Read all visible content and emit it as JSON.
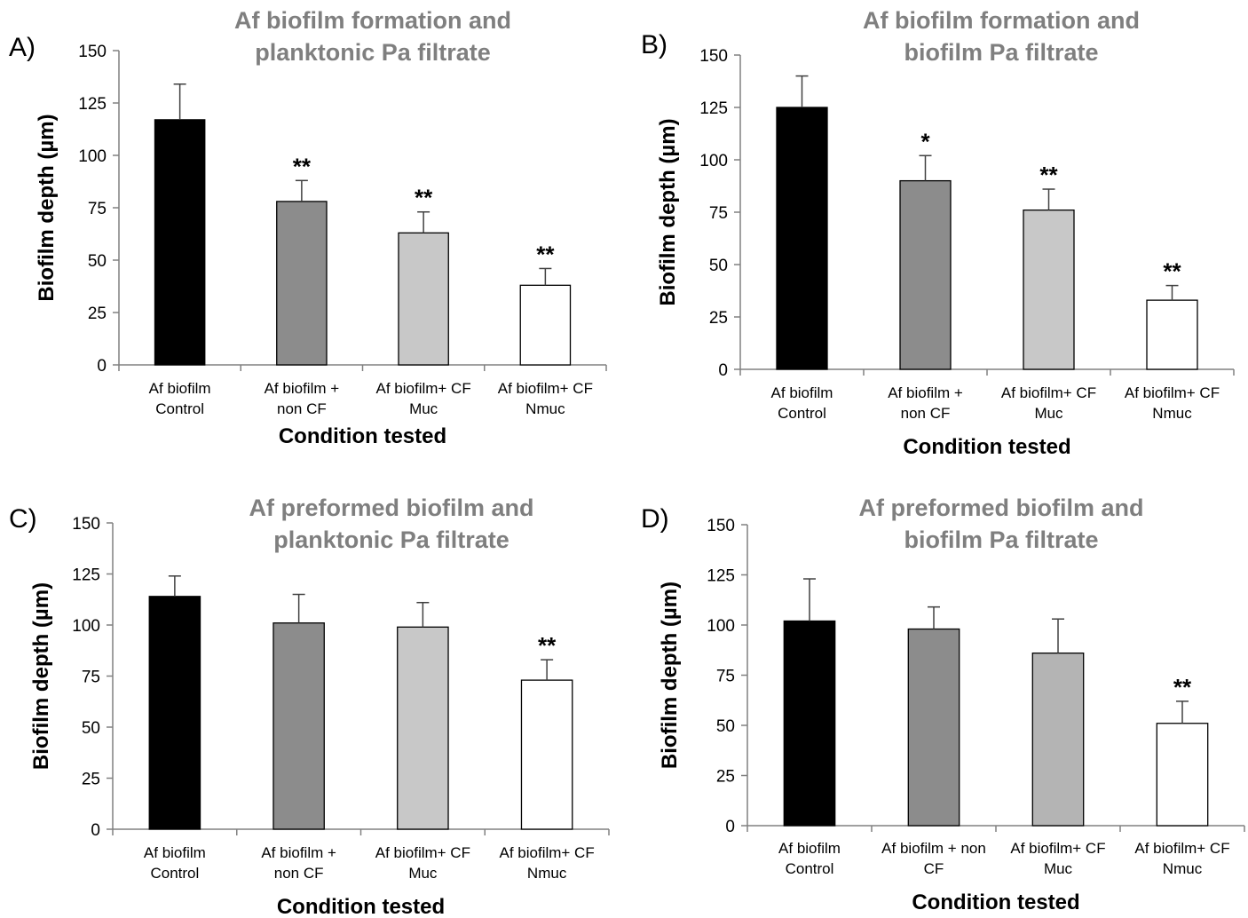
{
  "chart_data": [
    {
      "panel": "A)",
      "type": "bar",
      "title": [
        "Af biofilm formation and",
        "planktonic Pa filtrate"
      ],
      "xlabel": "Condition tested",
      "ylabel": "Biofilm depth (µm)",
      "ylim": [
        0,
        150
      ],
      "yticks": [
        "0",
        "25",
        "50",
        "75",
        "100",
        "125",
        "150"
      ],
      "categories": [
        [
          "Af biofilm",
          "Control"
        ],
        [
          "Af biofilm +",
          "non CF"
        ],
        [
          "Af biofilm+ CF",
          "Muc"
        ],
        [
          "Af biofilm+ CF",
          "Nmuc"
        ]
      ],
      "values": [
        117,
        78,
        63,
        38
      ],
      "errors": [
        17,
        10,
        10,
        8
      ],
      "significance": [
        "",
        "**",
        "**",
        "**"
      ],
      "bar_colors": [
        "#000000",
        "#8c8c8c",
        "#c8c8c8",
        "#ffffff"
      ]
    },
    {
      "panel": "B)",
      "type": "bar",
      "title": [
        "Af biofilm formation and",
        "biofilm Pa filtrate"
      ],
      "xlabel": "Condition tested",
      "ylabel": "Biofilm depth (µm)",
      "ylim": [
        0,
        150
      ],
      "yticks": [
        "0",
        "25",
        "50",
        "75",
        "100",
        "125",
        "150"
      ],
      "categories": [
        [
          "Af biofilm",
          "Control"
        ],
        [
          "Af biofilm +",
          "non CF"
        ],
        [
          "Af biofilm+ CF",
          "Muc"
        ],
        [
          "Af biofilm+ CF",
          "Nmuc"
        ]
      ],
      "values": [
        125,
        90,
        76,
        33
      ],
      "errors": [
        15,
        12,
        10,
        7
      ],
      "significance": [
        "",
        "*",
        "**",
        "**"
      ],
      "bar_colors": [
        "#000000",
        "#8c8c8c",
        "#c8c8c8",
        "#ffffff"
      ]
    },
    {
      "panel": "C)",
      "type": "bar",
      "title": [
        "Af preformed biofilm and",
        "planktonic Pa filtrate"
      ],
      "xlabel": "Condition tested",
      "ylabel": "Biofilm depth (µm)",
      "ylim": [
        0,
        150
      ],
      "yticks": [
        "0",
        "25",
        "50",
        "75",
        "100",
        "125",
        "150"
      ],
      "categories": [
        [
          "Af biofilm",
          "Control"
        ],
        [
          "Af biofilm +",
          "non CF"
        ],
        [
          "Af biofilm+ CF",
          "Muc"
        ],
        [
          "Af biofilm+ CF",
          "Nmuc"
        ]
      ],
      "values": [
        114,
        101,
        99,
        73
      ],
      "errors": [
        10,
        14,
        12,
        10
      ],
      "significance": [
        "",
        "",
        "",
        "**"
      ],
      "bar_colors": [
        "#000000",
        "#8c8c8c",
        "#c8c8c8",
        "#ffffff"
      ]
    },
    {
      "panel": "D)",
      "type": "bar",
      "title": [
        "Af preformed biofilm and",
        "biofilm Pa filtrate"
      ],
      "xlabel": "Condition tested",
      "ylabel": "Biofilm depth (µm)",
      "ylim": [
        0,
        150
      ],
      "yticks": [
        "0",
        "25",
        "50",
        "75",
        "100",
        "125",
        "150"
      ],
      "categories": [
        [
          "Af biofilm",
          "Control"
        ],
        [
          "Af biofilm + non",
          "CF"
        ],
        [
          "Af biofilm+ CF",
          "Muc"
        ],
        [
          "Af biofilm+ CF",
          "Nmuc"
        ]
      ],
      "values": [
        102,
        98,
        86,
        51
      ],
      "errors": [
        21,
        11,
        17,
        11
      ],
      "significance": [
        "",
        "",
        "",
        "**"
      ],
      "bar_colors": [
        "#000000",
        "#8c8c8c",
        "#b4b4b4",
        "#ffffff"
      ]
    }
  ]
}
